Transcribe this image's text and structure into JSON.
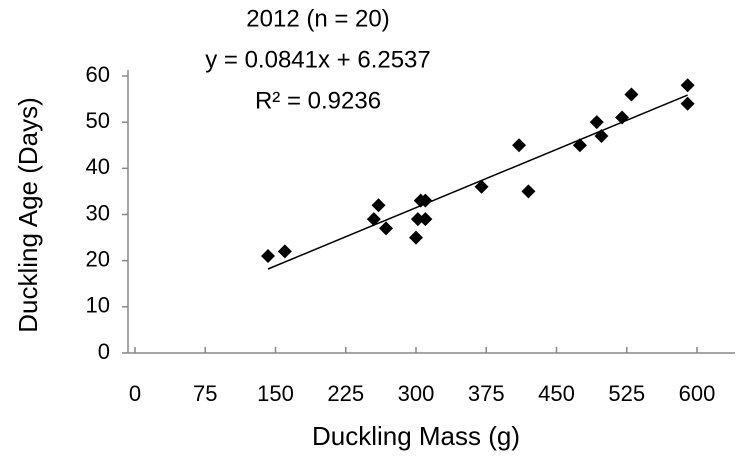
{
  "chart_data": {
    "type": "scatter",
    "title": [
      "2012 (n = 20)",
      "y = 0.0841x + 6.2537",
      "R² = 0.9236"
    ],
    "x_label": "Duckling Mass (g)",
    "y_label": "Duckling Age (Days)",
    "series": [
      {
        "name": "2012",
        "color": "#000000",
        "x": [
          142,
          160,
          255,
          260,
          268,
          300,
          302,
          305,
          310,
          310,
          370,
          410,
          420,
          475,
          493,
          498,
          520,
          530,
          590,
          590
        ],
        "values": [
          21,
          22,
          29,
          32,
          27,
          25,
          29,
          33,
          29,
          33,
          36,
          45,
          35,
          45,
          50,
          47,
          51,
          56,
          58,
          54
        ]
      }
    ],
    "trendline": {
      "slope": 0.0841,
      "intercept": 6.2537
    },
    "xlim": [
      0,
      600
    ],
    "ylim": [
      0,
      60
    ],
    "xticks": [
      0,
      75,
      150,
      225,
      300,
      375,
      450,
      525,
      600
    ],
    "yticks": [
      0,
      10,
      20,
      30,
      40,
      50,
      60
    ]
  }
}
